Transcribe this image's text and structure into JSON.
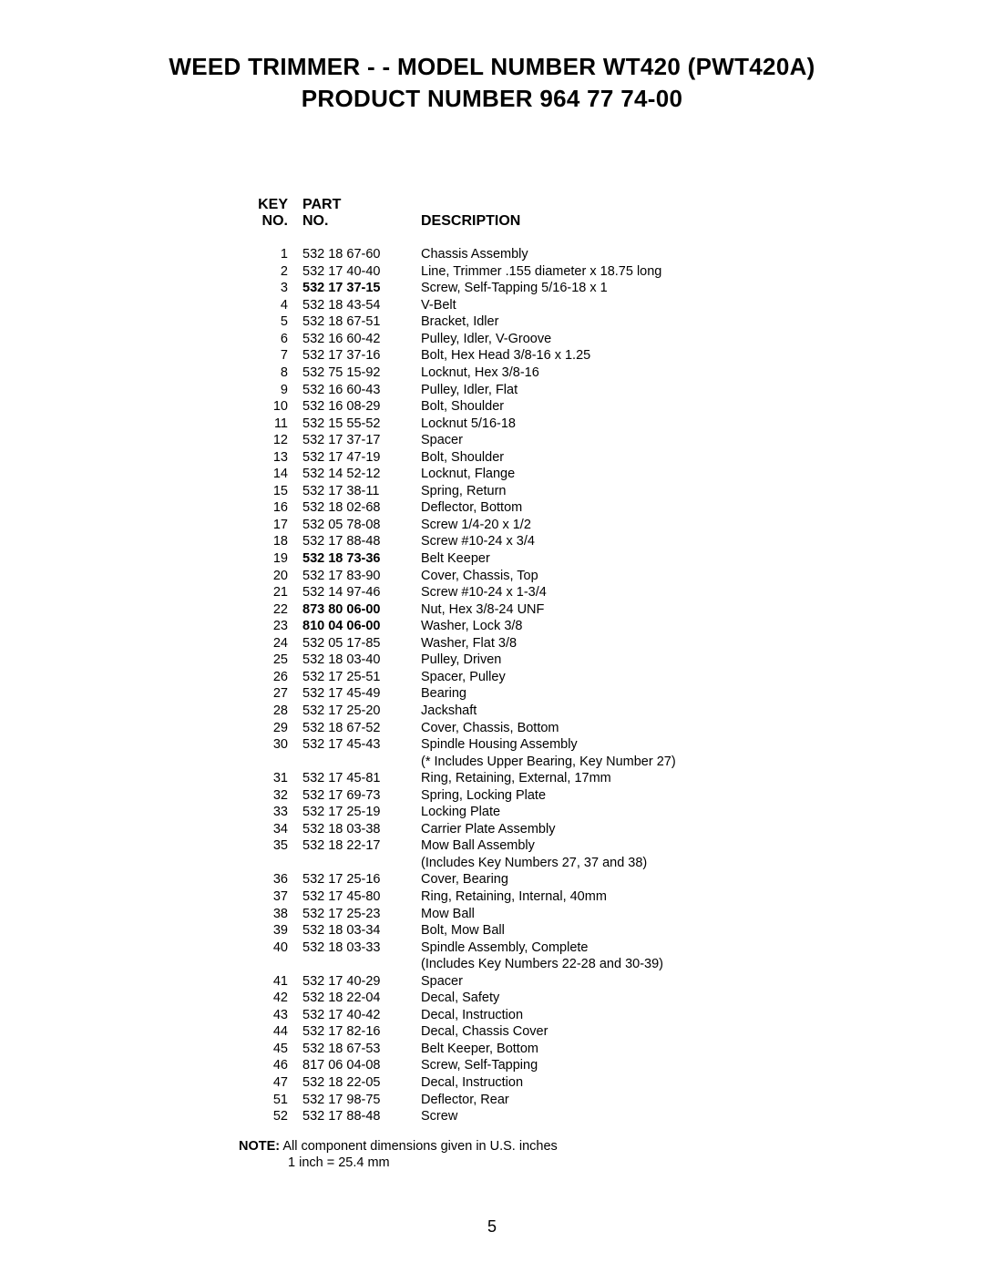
{
  "title": {
    "line1": "WEED TRIMMER - - MODEL NUMBER WT420 (PWT420A)",
    "line2": "PRODUCT NUMBER 964 77 74-00"
  },
  "headers": {
    "key_top": "KEY",
    "key_bottom": "NO.",
    "part_top": "PART",
    "part_bottom": "NO.",
    "description": "DESCRIPTION"
  },
  "rows": [
    {
      "key": "1",
      "part": "532 18 67-60",
      "desc": "Chassis Assembly",
      "bold": false
    },
    {
      "key": "2",
      "part": "532 17 40-40",
      "desc": "Line, Trimmer  .155 diameter x 18.75 long",
      "bold": false
    },
    {
      "key": "3",
      "part": "532 17 37-15",
      "desc": "Screw, Self-Tapping   5/16-18 x 1",
      "bold": true
    },
    {
      "key": "4",
      "part": "532 18 43-54",
      "desc": "V-Belt",
      "bold": false
    },
    {
      "key": "5",
      "part": "532 18 67-51",
      "desc": "Bracket, Idler",
      "bold": false
    },
    {
      "key": "6",
      "part": "532 16 60-42",
      "desc": "Pulley, Idler, V-Groove",
      "bold": false
    },
    {
      "key": "7",
      "part": "532 17 37-16",
      "desc": "Bolt, Hex Head  3/8-16 x 1.25",
      "bold": false
    },
    {
      "key": "8",
      "part": "532 75 15-92",
      "desc": "Locknut, Hex  3/8-16",
      "bold": false
    },
    {
      "key": "9",
      "part": "532 16 60-43",
      "desc": "Pulley, Idler, Flat",
      "bold": false
    },
    {
      "key": "10",
      "part": "532 16 08-29",
      "desc": "Bolt, Shoulder",
      "bold": false
    },
    {
      "key": "11",
      "part": "532 15 55-52",
      "desc": "Locknut  5/16-18",
      "bold": false
    },
    {
      "key": "12",
      "part": "532 17 37-17",
      "desc": "Spacer",
      "bold": false
    },
    {
      "key": "13",
      "part": "532 17 47-19",
      "desc": "Bolt, Shoulder",
      "bold": false
    },
    {
      "key": "14",
      "part": "532 14 52-12",
      "desc": "Locknut, Flange",
      "bold": false
    },
    {
      "key": "15",
      "part": "532 17 38-11",
      "desc": "Spring, Return",
      "bold": false
    },
    {
      "key": "16",
      "part": "532 18 02-68",
      "desc": "Deflector, Bottom",
      "bold": false
    },
    {
      "key": "17",
      "part": "532 05 78-08",
      "desc": "Screw  1/4-20 x 1/2",
      "bold": false
    },
    {
      "key": "18",
      "part": "532 17 88-48",
      "desc": "Screw  #10-24 x 3/4",
      "bold": false
    },
    {
      "key": "19",
      "part": "532 18 73-36",
      "desc": "Belt Keeper",
      "bold": true
    },
    {
      "key": "20",
      "part": "532 17 83-90",
      "desc": "Cover, Chassis, Top",
      "bold": false
    },
    {
      "key": "21",
      "part": "532 14 97-46",
      "desc": "Screw  #10-24 x 1-3/4",
      "bold": false
    },
    {
      "key": "22",
      "part": "873 80 06-00",
      "desc": "Nut, Hex  3/8-24 UNF",
      "bold": true
    },
    {
      "key": "23",
      "part": "810 04 06-00",
      "desc": "Washer, Lock  3/8",
      "bold": true
    },
    {
      "key": "24",
      "part": "532 05 17-85",
      "desc": "Washer, Flat  3/8",
      "bold": false
    },
    {
      "key": "25",
      "part": "532 18 03-40",
      "desc": "Pulley, Driven",
      "bold": false
    },
    {
      "key": "26",
      "part": "532 17 25-51",
      "desc": "Spacer, Pulley",
      "bold": false
    },
    {
      "key": "27",
      "part": "532 17 45-49",
      "desc": "Bearing",
      "bold": false
    },
    {
      "key": "28",
      "part": "532 17 25-20",
      "desc": "Jackshaft",
      "bold": false
    },
    {
      "key": "29",
      "part": "532 18 67-52",
      "desc": "Cover, Chassis, Bottom",
      "bold": false
    },
    {
      "key": "30",
      "part": "532 17 45-43",
      "desc": "Spindle Housing Assembly",
      "bold": false
    },
    {
      "key": "",
      "part": "",
      "desc": "(* Includes Upper Bearing, Key Number 27)",
      "bold": false
    },
    {
      "key": "31",
      "part": "532 17 45-81",
      "desc": "Ring, Retaining, External, 17mm",
      "bold": false
    },
    {
      "key": "32",
      "part": "532 17 69-73",
      "desc": "Spring, Locking Plate",
      "bold": false
    },
    {
      "key": "33",
      "part": "532 17 25-19",
      "desc": "Locking Plate",
      "bold": false
    },
    {
      "key": "34",
      "part": "532 18 03-38",
      "desc": "Carrier Plate Assembly",
      "bold": false
    },
    {
      "key": "35",
      "part": "532 18 22-17",
      "desc": "Mow Ball Assembly",
      "bold": false
    },
    {
      "key": "",
      "part": "",
      "desc": "(Includes Key Numbers 27, 37 and 38)",
      "bold": false
    },
    {
      "key": "36",
      "part": "532 17 25-16",
      "desc": "Cover, Bearing",
      "bold": false
    },
    {
      "key": "37",
      "part": "532 17 45-80",
      "desc": "Ring, Retaining, Internal, 40mm",
      "bold": false
    },
    {
      "key": "38",
      "part": "532 17 25-23",
      "desc": "Mow Ball",
      "bold": false
    },
    {
      "key": "39",
      "part": "532 18 03-34",
      "desc": "Bolt, Mow Ball",
      "bold": false
    },
    {
      "key": "40",
      "part": "532 18 03-33",
      "desc": "Spindle Assembly, Complete",
      "bold": false
    },
    {
      "key": "",
      "part": "",
      "desc": "(Includes Key Numbers 22-28 and 30-39)",
      "bold": false
    },
    {
      "key": "41",
      "part": "532 17 40-29",
      "desc": "Spacer",
      "bold": false
    },
    {
      "key": "42",
      "part": "532 18 22-04",
      "desc": "Decal, Safety",
      "bold": false
    },
    {
      "key": "43",
      "part": "532 17 40-42",
      "desc": "Decal, Instruction",
      "bold": false
    },
    {
      "key": "44",
      "part": "532 17 82-16",
      "desc": "Decal, Chassis Cover",
      "bold": false
    },
    {
      "key": "45",
      "part": "532 18 67-53",
      "desc": "Belt Keeper, Bottom",
      "bold": false
    },
    {
      "key": "46",
      "part": "817 06 04-08",
      "desc": "Screw, Self-Tapping",
      "bold": false
    },
    {
      "key": "47",
      "part": "532 18 22-05",
      "desc": "Decal, Instruction",
      "bold": false
    },
    {
      "key": "51",
      "part": "532 17 98-75",
      "desc": "Deflector, Rear",
      "bold": false
    },
    {
      "key": "52",
      "part": "532 17 88-48",
      "desc": "Screw",
      "bold": false
    }
  ],
  "note": {
    "label": "NOTE:",
    "text1": "  All component dimensions given in U.S. inches",
    "text2": "1 inch = 25.4 mm"
  },
  "page_number": "5"
}
